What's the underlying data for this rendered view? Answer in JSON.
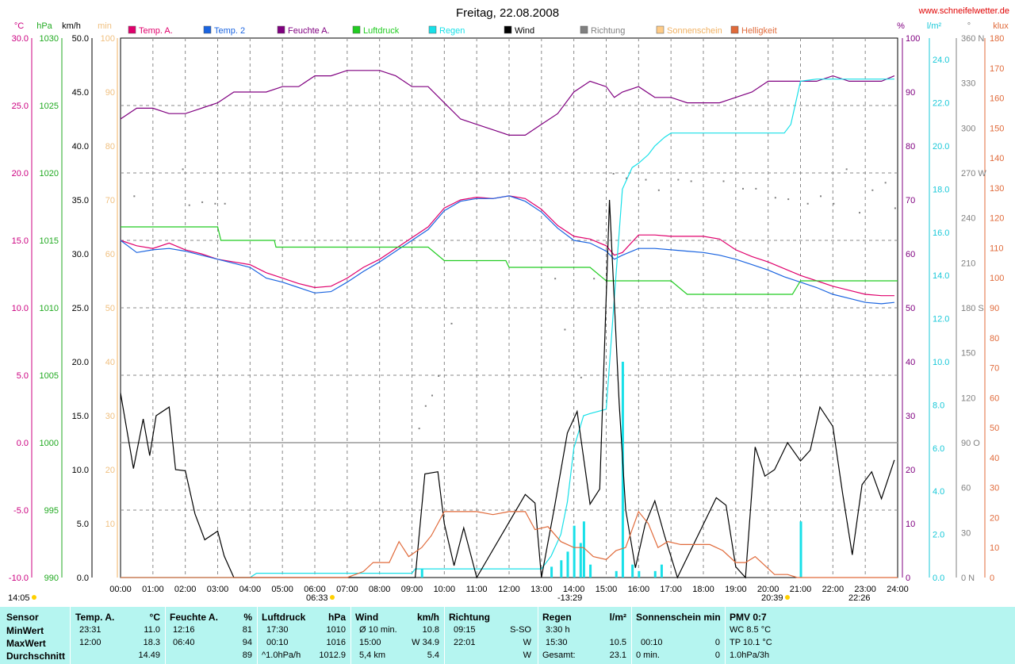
{
  "title": "Freitag, 22.08.2008",
  "site": "www.schneifelwetter.de",
  "legend": [
    {
      "name": "Temp. A.",
      "color": "#e0006c"
    },
    {
      "name": "Temp. 2",
      "color": "#1a64e0"
    },
    {
      "name": "Feuchte A.",
      "color": "#800080"
    },
    {
      "name": "Luftdruck",
      "color": "#22cc22"
    },
    {
      "name": "Regen",
      "color": "#18e0e8"
    },
    {
      "name": "Wind",
      "color": "#000000"
    },
    {
      "name": "Richtung",
      "color": "#808080"
    },
    {
      "name": "Sonnenschein",
      "color": "#ffcc88"
    },
    {
      "name": "Helligkeit",
      "color": "#e06a3a"
    }
  ],
  "axes": {
    "temp": {
      "unit": "°C",
      "ticks": [
        "30.0",
        "25.0",
        "20.0",
        "15.0",
        "10.0",
        "5.0",
        "0.0",
        "-5.0",
        "-10.0"
      ],
      "color": "#cc0080"
    },
    "pressure": {
      "unit": "hPa",
      "ticks": [
        "1030",
        "1025",
        "1020",
        "1015",
        "1010",
        "1005",
        "1000",
        "995",
        "990"
      ],
      "color": "#22aa22"
    },
    "wind": {
      "unit": "km/h",
      "ticks": [
        "50.0",
        "45.0",
        "40.0",
        "35.0",
        "30.0",
        "25.0",
        "20.0",
        "15.0",
        "10.0",
        "5.0",
        "0.0"
      ],
      "color": "#000000"
    },
    "sun": {
      "unit": "min",
      "ticks": [
        "100",
        "90",
        "80",
        "70",
        "60",
        "50",
        "40",
        "30",
        "20",
        "10"
      ],
      "color": "#ffcc88"
    },
    "humidity": {
      "unit": "%",
      "ticks": [
        "100",
        "90",
        "80",
        "70",
        "60",
        "50",
        "40",
        "30",
        "20",
        "10",
        "0"
      ],
      "color": "#800080"
    },
    "rain": {
      "unit": "l/m²",
      "ticks": [
        "24.0",
        "22.0",
        "20.0",
        "18.0",
        "16.0",
        "14.0",
        "12.0",
        "10.0",
        "8.0",
        "6.0",
        "4.0",
        "2.0",
        "0.0"
      ],
      "color": "#18c8d8"
    },
    "direction": {
      "unit": "°",
      "ticks": [
        "360 N",
        "330",
        "300",
        "270 W",
        "240",
        "210",
        "180 S",
        "150",
        "120",
        "90 O",
        "60",
        "30",
        "0 N"
      ],
      "color": "#808080"
    },
    "light": {
      "unit": "klux",
      "ticks": [
        "180",
        "170",
        "160",
        "150",
        "140",
        "130",
        "120",
        "110",
        "100",
        "90",
        "80",
        "70",
        "60",
        "50",
        "40",
        "30",
        "20",
        "10",
        "0"
      ],
      "color": "#e06a3a"
    }
  },
  "x_ticks": [
    "00:00",
    "01:00",
    "02:00",
    "03:00",
    "04:00",
    "05:00",
    "06:00",
    "07:00",
    "08:00",
    "09:00",
    "10:00",
    "11:00",
    "12:00",
    "13:00",
    "14:00",
    "15:00",
    "16:00",
    "17:00",
    "18:00",
    "19:00",
    "20:00",
    "21:00",
    "22:00",
    "23:00",
    "24:00"
  ],
  "markers": {
    "left_time": "14:05",
    "sunrise": "06:33",
    "noon": "-13:29",
    "sunset": "20:39",
    "moon": "22:26"
  },
  "chart_data": {
    "type": "line",
    "title": "Freitag, 22.08.2008",
    "x_range": [
      "00:00",
      "24:00"
    ],
    "grid": true,
    "series": [
      {
        "name": "Temp. A.",
        "unit": "°C",
        "x": [
          0,
          0.5,
          1,
          1.5,
          2,
          2.5,
          3,
          3.5,
          4,
          4.5,
          5,
          5.5,
          6,
          6.5,
          7,
          7.5,
          8,
          8.5,
          9,
          9.5,
          10,
          10.5,
          11,
          11.5,
          12,
          12.5,
          13,
          13.5,
          14,
          14.5,
          15,
          15.25,
          15.5,
          16,
          16.5,
          17,
          17.5,
          18,
          18.5,
          19,
          19.5,
          20,
          20.5,
          21,
          21.5,
          22,
          22.5,
          23,
          23.5,
          23.9
        ],
        "y": [
          15.0,
          14.6,
          14.4,
          14.8,
          14.3,
          14.0,
          13.6,
          13.4,
          13.2,
          12.6,
          12.2,
          11.8,
          11.5,
          11.6,
          12.2,
          13.0,
          13.6,
          14.4,
          15.2,
          16.0,
          17.4,
          18.0,
          18.2,
          18.1,
          18.3,
          18.1,
          17.3,
          16.1,
          15.3,
          15.1,
          14.6,
          13.9,
          14.1,
          15.4,
          15.4,
          15.3,
          15.3,
          15.3,
          15.1,
          14.3,
          13.8,
          13.4,
          12.9,
          12.4,
          12.0,
          11.6,
          11.3,
          11.0,
          10.9,
          10.9
        ]
      },
      {
        "name": "Temp. 2",
        "unit": "°C",
        "x": [
          0,
          0.5,
          1,
          1.5,
          2,
          2.5,
          3,
          3.5,
          4,
          4.5,
          5,
          5.5,
          6,
          6.5,
          7,
          7.5,
          8,
          8.5,
          9,
          9.5,
          10,
          10.5,
          11,
          11.5,
          12,
          12.5,
          13,
          13.5,
          14,
          14.5,
          15,
          15.25,
          15.5,
          16,
          16.5,
          17,
          17.5,
          18,
          18.5,
          19,
          19.5,
          20,
          20.5,
          21,
          21.5,
          22,
          22.5,
          23,
          23.5,
          23.9
        ],
        "y": [
          15.0,
          14.1,
          14.3,
          14.4,
          14.2,
          13.9,
          13.6,
          13.3,
          13.0,
          12.2,
          11.9,
          11.5,
          11.1,
          11.2,
          11.9,
          12.7,
          13.4,
          14.2,
          15.0,
          15.8,
          17.2,
          17.9,
          18.1,
          18.1,
          18.3,
          17.9,
          17.1,
          15.9,
          15.0,
          14.8,
          14.2,
          13.6,
          13.9,
          14.4,
          14.4,
          14.3,
          14.2,
          14.1,
          13.9,
          13.6,
          13.2,
          12.8,
          12.3,
          11.9,
          11.5,
          11.0,
          10.7,
          10.4,
          10.3,
          10.4
        ]
      },
      {
        "name": "Feuchte A.",
        "unit": "%",
        "x": [
          0,
          0.5,
          1,
          1.5,
          2,
          2.5,
          3,
          3.5,
          4,
          4.5,
          5,
          5.5,
          6,
          6.5,
          7,
          7.5,
          8,
          8.5,
          9,
          9.5,
          10,
          10.5,
          11,
          11.5,
          12,
          12.5,
          13,
          13.5,
          14,
          14.5,
          15,
          15.25,
          15.5,
          16,
          16.5,
          17,
          17.5,
          18,
          18.5,
          19,
          19.5,
          20,
          20.5,
          21,
          21.5,
          22,
          22.5,
          23,
          23.5,
          23.9
        ],
        "y": [
          85,
          87,
          87,
          86,
          86,
          87,
          88,
          90,
          90,
          90,
          91,
          91,
          93,
          93,
          94,
          94,
          94,
          93,
          91,
          91,
          88,
          85,
          84,
          83,
          82,
          82,
          84,
          86,
          90,
          92,
          91,
          89,
          90,
          91,
          89,
          89,
          88,
          88,
          88,
          89,
          90,
          92,
          92,
          92,
          92,
          93,
          92,
          92,
          92,
          93
        ]
      },
      {
        "name": "Luftdruck",
        "unit": "hPa",
        "x": [
          0,
          3,
          3.1,
          4.75,
          4.8,
          9.5,
          10,
          11.9,
          12,
          13,
          14.5,
          15,
          17,
          17.5,
          20.75,
          21,
          24
        ],
        "y": [
          1016,
          1016,
          1015,
          1015,
          1014.5,
          1014.5,
          1013.5,
          1013.5,
          1013,
          1013,
          1013,
          1012,
          1012,
          1011,
          1011,
          1012,
          1012
        ]
      },
      {
        "name": "Regen",
        "unit": "l/m²",
        "x": [
          0,
          4,
          4.2,
          9,
          9.1,
          13,
          13.3,
          13.6,
          13.8,
          14,
          14.3,
          14.5,
          15,
          15.3,
          15.5,
          15.8,
          16,
          16.3,
          16.5,
          16.8,
          17,
          20.5,
          20.7,
          21,
          21.5,
          22,
          23,
          23.9
        ],
        "y": [
          0,
          0,
          0.2,
          0.2,
          0.4,
          0.4,
          1.0,
          2.0,
          3.5,
          6.0,
          7.5,
          7.6,
          7.8,
          14.0,
          18.0,
          19.0,
          19.2,
          19.6,
          20.0,
          20.4,
          20.6,
          20.6,
          21.0,
          23.0,
          23.1,
          23.1,
          23.1,
          23.1
        ]
      },
      {
        "name": "Wind",
        "unit": "km/h",
        "x": [
          0,
          0.4,
          0.7,
          0.9,
          1.1,
          1.5,
          1.7,
          2.0,
          2.3,
          2.6,
          3.0,
          3.2,
          3.5,
          9.1,
          9.4,
          9.8,
          10.0,
          10.3,
          10.6,
          11,
          12.5,
          12.8,
          13,
          13.4,
          13.8,
          14.1,
          14.5,
          14.8,
          15.1,
          15.4,
          15.6,
          15.9,
          16.2,
          16.5,
          16.8,
          17.2,
          18.4,
          18.7,
          19.0,
          19.3,
          19.6,
          19.9,
          20.2,
          20.6,
          21.0,
          21.3,
          21.6,
          22.0,
          22.3,
          22.6,
          22.9,
          23.2,
          23.5,
          23.9
        ],
        "y": [
          17.1,
          10.1,
          14.7,
          11.3,
          15.0,
          15.8,
          10.0,
          9.9,
          5.9,
          3.5,
          4.3,
          2.0,
          0,
          0,
          9.6,
          9.8,
          5.0,
          1.1,
          4.6,
          0,
          7.7,
          6.9,
          0,
          6.5,
          13.4,
          15.4,
          6.8,
          8.2,
          35.0,
          16.2,
          6.3,
          0.9,
          4.9,
          7.1,
          3.9,
          0,
          7.4,
          6.7,
          1.0,
          0,
          12.1,
          9.4,
          10.0,
          12.5,
          10.8,
          11.8,
          15.8,
          14.0,
          7.8,
          2.1,
          8.6,
          9.8,
          7.3,
          10.9
        ]
      },
      {
        "name": "Richtung",
        "unit": "°",
        "x": [
          0.4,
          1.9,
          2.1,
          2.5,
          2.9,
          3.2,
          9.2,
          9.4,
          9.6,
          9.8,
          10.2,
          13.4,
          13.7,
          14.2,
          14.6,
          15.2,
          15.6,
          16.2,
          16.6,
          17.2,
          17.6,
          18.6,
          19.2,
          19.6,
          20.2,
          20.6,
          21.2,
          21.6,
          22.0,
          22.4,
          22.8,
          23.2,
          23.6,
          23.9
        ],
        "y": [
          255,
          273,
          249,
          251,
          250,
          250,
          100,
          115,
          122,
          135,
          170,
          200,
          166,
          134,
          200,
          270,
          267,
          266,
          259,
          266,
          265,
          265,
          260,
          260,
          254,
          253,
          250,
          255,
          250,
          273,
          244,
          259,
          264,
          247
        ]
      },
      {
        "name": "Helligkeit",
        "unit": "klux",
        "x": [
          0,
          6.5,
          7.0,
          7.5,
          7.8,
          8.0,
          8.3,
          8.6,
          8.9,
          9.3,
          9.6,
          10.0,
          10.5,
          11.0,
          11.5,
          12.0,
          12.5,
          12.8,
          13.2,
          13.6,
          14.0,
          14.3,
          14.6,
          15.0,
          15.3,
          15.6,
          16.0,
          16.3,
          16.6,
          16.9,
          17.3,
          17.8,
          18.2,
          18.6,
          19.0,
          19.3,
          19.6,
          19.8,
          20.2,
          20.6,
          20.9,
          21.2,
          24
        ],
        "y": [
          0,
          0,
          0,
          2,
          5,
          5,
          5,
          12,
          7,
          10,
          14,
          22,
          22,
          22,
          21,
          22,
          22,
          16,
          17,
          12,
          10,
          10,
          7,
          6,
          9,
          10,
          22,
          18,
          10,
          12,
          11,
          11,
          11,
          9,
          5,
          5,
          7,
          5,
          1,
          1,
          0,
          0,
          0
        ]
      }
    ],
    "rain_bars": [
      {
        "x": 9.3,
        "y": 0.4
      },
      {
        "x": 13.3,
        "y": 0.5
      },
      {
        "x": 13.6,
        "y": 0.8
      },
      {
        "x": 13.8,
        "y": 1.2
      },
      {
        "x": 14.0,
        "y": 2.4
      },
      {
        "x": 14.2,
        "y": 1.6
      },
      {
        "x": 14.3,
        "y": 2.6
      },
      {
        "x": 14.5,
        "y": 0.6
      },
      {
        "x": 15.3,
        "y": 0.3
      },
      {
        "x": 15.5,
        "y": 10.0
      },
      {
        "x": 15.8,
        "y": 0.6
      },
      {
        "x": 16.0,
        "y": 0.3
      },
      {
        "x": 16.5,
        "y": 0.3
      },
      {
        "x": 16.7,
        "y": 0.6
      },
      {
        "x": 21.0,
        "y": 2.6
      }
    ]
  },
  "stats": {
    "headers": {
      "sensor": "Sensor",
      "temp": "Temp. A.",
      "temp_unit": "°C",
      "hum": "Feuchte A.",
      "hum_unit": "%",
      "press": "Luftdruck",
      "press_unit": "hPa",
      "wind": "Wind",
      "wind_unit": "km/h",
      "dir": "Richtung",
      "rain": "Regen",
      "rain_unit": "l/m²",
      "sun": "Sonnenschein min",
      "pmv": "PMV 0:7"
    },
    "labels": {
      "min": "MinWert",
      "max": "MaxWert",
      "avg": "Durchschnitt"
    },
    "min": {
      "temp_time": "23:31",
      "temp": "11.0",
      "hum_time": "12:16",
      "hum": "81",
      "press_time": "17:30",
      "press": "1010",
      "wind_label": "Ø 10 min.",
      "wind": "10.8",
      "dir_time": "09:15",
      "dir": "S-SO",
      "rain_label": "3:30 h",
      "rain": "",
      "sun_label": "",
      "sun": "",
      "pmv": "WC 8.5 °C"
    },
    "max": {
      "temp_time": "12:00",
      "temp": "18.3",
      "hum_time": "06:40",
      "hum": "94",
      "press_time": "00:10",
      "press": "1016",
      "wind_label": "15:00",
      "wind": "W 34.9",
      "dir_time": "22:01",
      "dir": "W",
      "rain_label": "15:30",
      "rain": "10.5",
      "sun_label": "00:10",
      "sun": "0",
      "pmv": "TP 10.1 °C"
    },
    "avg": {
      "temp_time": "",
      "temp": "14.49",
      "hum_time": "",
      "hum": "89",
      "press_time": "^1.0hPa/h",
      "press": "1012.9",
      "wind_label": "5,4 km",
      "wind": "5.4",
      "dir_time": "",
      "dir": "W",
      "rain_label": "Gesamt:",
      "rain": "23.1",
      "sun_label": "0 min.",
      "sun": "0",
      "pmv": "1.0hPa/3h"
    }
  }
}
